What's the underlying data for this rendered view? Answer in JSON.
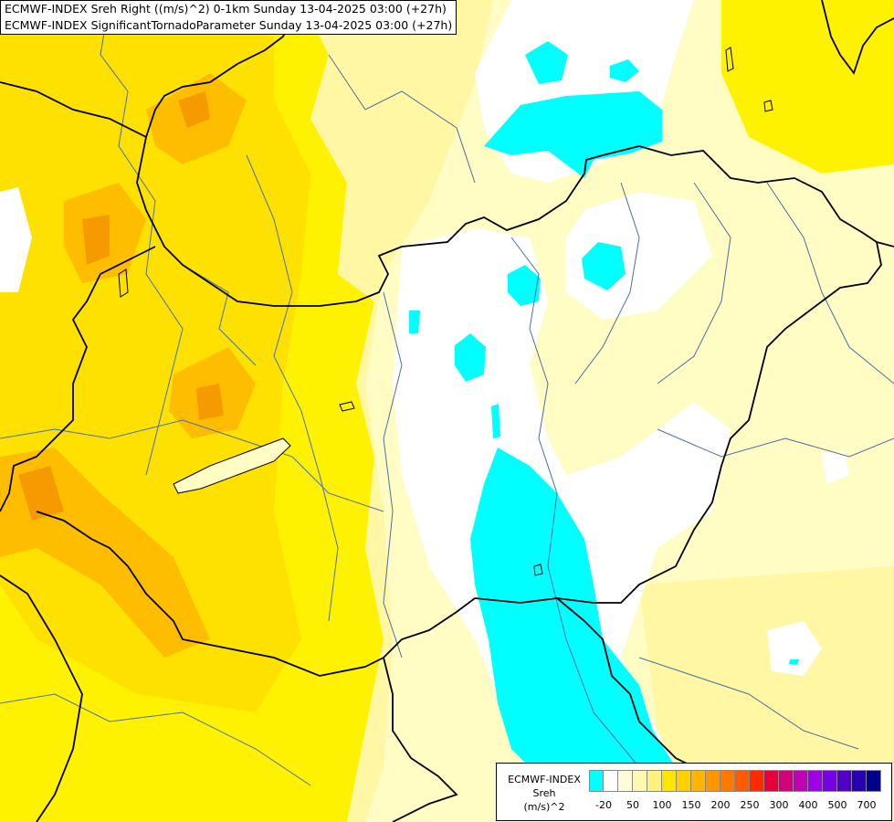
{
  "title": {
    "line1": "ECMWF-INDEX Sreh Right ((m/s)^2) 0-1km Sunday 13-04-2025 03:00 (+27h)",
    "line2": "ECMWF-INDEX SignificantTornadoParameter Sunday 13-04-2025 03:00 (+27h)"
  },
  "legend": {
    "source": "ECMWF-INDEX",
    "parameter": "Sreh",
    "unit": "(m/s)^2",
    "colors": [
      "#00ffff",
      "#ffffff",
      "#fffbd8",
      "#fff8b0",
      "#fff080",
      "#ffe600",
      "#ffd000",
      "#ffb400",
      "#ff9600",
      "#ff7800",
      "#ff5a00",
      "#ff2a00",
      "#e6003c",
      "#d2007a",
      "#c000b4",
      "#a000e6",
      "#7800e6",
      "#5000c8",
      "#2800b4",
      "#00008c"
    ],
    "ticks": [
      "-20",
      "50",
      "100",
      "150",
      "200",
      "250",
      "300",
      "400",
      "500",
      "700"
    ]
  },
  "map_colors": {
    "background": "#fffdc4",
    "white": "#ffffff",
    "yellow_light": "#fff7a3",
    "yellow": "#fff200",
    "yellow_strong": "#ffe100",
    "orange": "#ffbd00",
    "orange_dark": "#f59a00",
    "cyan": "#00ffff",
    "border": "#000000",
    "river": "#4a6fa5"
  }
}
